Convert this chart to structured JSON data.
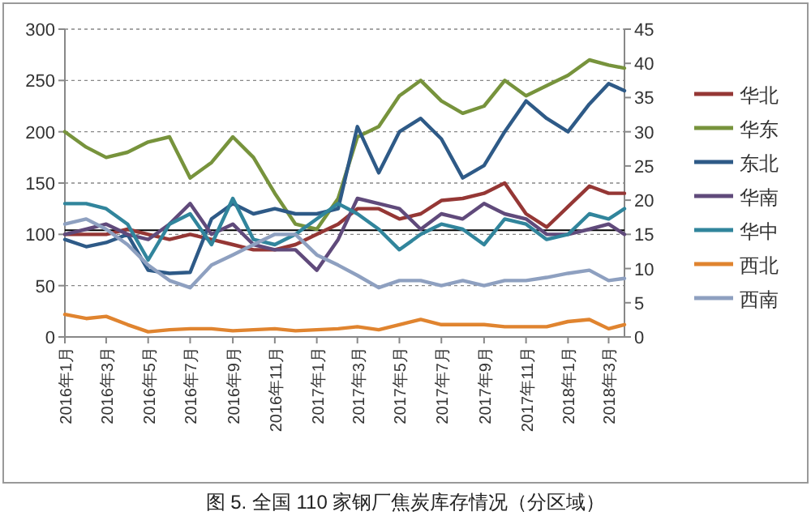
{
  "chart_data": {
    "type": "line",
    "title": "图 5. 全国 110 家钢厂焦炭库存情况（分区域）",
    "x": [
      "2016-01-01",
      "2016-02-01",
      "2016-03-01",
      "2016-04-01",
      "2016-05-01",
      "2016-06-01",
      "2016-07-01",
      "2016-08-01",
      "2016-09-01",
      "2016-10-01",
      "2016-11-01",
      "2016-12-01",
      "2017-01-01",
      "2017-02-01",
      "2017-03-01",
      "2017-04-01",
      "2017-05-01",
      "2017-06-01",
      "2017-07-01",
      "2017-08-01",
      "2017-09-01",
      "2017-10-01",
      "2017-11-01",
      "2017-12-01",
      "2018-01-01",
      "2018-02-01",
      "2018-03-01",
      "2018-03-24"
    ],
    "xlim": [
      "2016-01-01",
      "2018-03-24"
    ],
    "xticks": [
      {
        "value": "2016-01-01",
        "label": "2016年1月"
      },
      {
        "value": "2016-03-01",
        "label": "2016年3月"
      },
      {
        "value": "2016-05-01",
        "label": "2016年5月"
      },
      {
        "value": "2016-07-01",
        "label": "2016年7月"
      },
      {
        "value": "2016-09-01",
        "label": "2016年9月"
      },
      {
        "value": "2016-11-01",
        "label": "2016年11月"
      },
      {
        "value": "2017-01-01",
        "label": "2017年1月"
      },
      {
        "value": "2017-03-01",
        "label": "2017年3月"
      },
      {
        "value": "2017-05-01",
        "label": "2017年5月"
      },
      {
        "value": "2017-07-01",
        "label": "2017年7月"
      },
      {
        "value": "2017-09-01",
        "label": "2017年9月"
      },
      {
        "value": "2017-11-01",
        "label": "2017年11月"
      },
      {
        "value": "2018-01-01",
        "label": "2018年1月"
      },
      {
        "value": "2018-03-01",
        "label": "2018年3月"
      }
    ],
    "ylim": [
      0,
      300
    ],
    "yticks": [
      0,
      50,
      100,
      150,
      200,
      250,
      300
    ],
    "y2lim": [
      0,
      45
    ],
    "y2ticks": [
      0,
      5,
      10,
      15,
      20,
      25,
      30,
      35,
      40,
      45
    ],
    "grid": "y",
    "legend": "right",
    "ref_lines": [
      {
        "axis": "y",
        "value": 104,
        "color": "#000000"
      }
    ],
    "series": [
      {
        "name": "华北",
        "color": "#953735",
        "values": [
          100,
          100,
          100,
          105,
          100,
          95,
          100,
          95,
          90,
          85,
          85,
          90,
          100,
          110,
          125,
          125,
          115,
          120,
          133,
          135,
          140,
          150,
          120,
          107,
          127,
          147,
          140,
          140
        ]
      },
      {
        "name": "华东",
        "color": "#77933c",
        "values": [
          200,
          185,
          175,
          180,
          190,
          195,
          155,
          170,
          195,
          175,
          140,
          110,
          105,
          135,
          195,
          205,
          235,
          250,
          230,
          218,
          225,
          250,
          235,
          245,
          255,
          270,
          265,
          262
        ]
      },
      {
        "name": "东北",
        "color": "#2e5a87",
        "values": [
          95,
          88,
          92,
          100,
          65,
          62,
          63,
          115,
          130,
          120,
          125,
          120,
          120,
          125,
          205,
          160,
          200,
          213,
          193,
          155,
          167,
          200,
          230,
          213,
          200,
          227,
          247,
          240
        ]
      },
      {
        "name": "华南",
        "color": "#604a7b",
        "values": [
          100,
          105,
          110,
          100,
          95,
          110,
          130,
          100,
          110,
          90,
          85,
          85,
          65,
          95,
          135,
          130,
          125,
          105,
          120,
          115,
          130,
          120,
          115,
          100,
          100,
          105,
          110,
          100
        ]
      },
      {
        "name": "华中",
        "color": "#31859c",
        "values": [
          130,
          130,
          125,
          110,
          75,
          110,
          120,
          90,
          135,
          95,
          90,
          100,
          115,
          130,
          120,
          105,
          85,
          100,
          110,
          105,
          90,
          115,
          110,
          95,
          100,
          120,
          115,
          125
        ]
      },
      {
        "name": "西北",
        "color": "#e0842f",
        "values": [
          22,
          18,
          20,
          12,
          5,
          7,
          8,
          8,
          6,
          7,
          8,
          6,
          7,
          8,
          10,
          7,
          12,
          17,
          12,
          12,
          12,
          10,
          10,
          10,
          15,
          17,
          8,
          12
        ]
      },
      {
        "name": "西南",
        "color": "#8ea0c0",
        "values": [
          110,
          115,
          105,
          90,
          70,
          55,
          48,
          70,
          80,
          90,
          100,
          100,
          80,
          70,
          60,
          48,
          55,
          55,
          50,
          55,
          50,
          55,
          55,
          58,
          62,
          65,
          55,
          57
        ]
      }
    ]
  }
}
